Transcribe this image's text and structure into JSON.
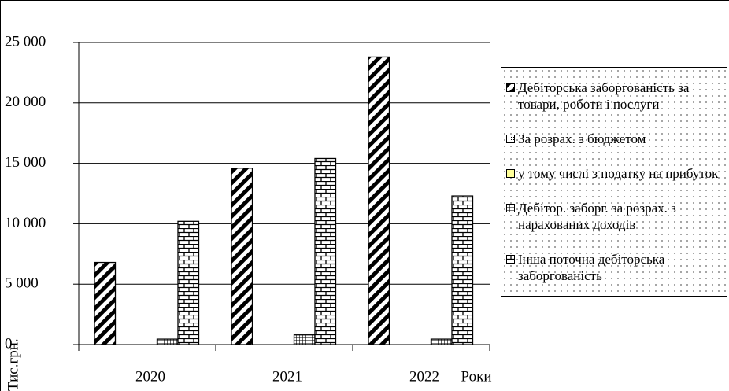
{
  "chart_data": {
    "type": "bar",
    "categories": [
      "2020",
      "2021",
      "2022"
    ],
    "series": [
      {
        "name": "Дебіторська заборгованість за товари, роботи і послуги",
        "color": "#000000",
        "pattern": "diagonal",
        "values": [
          6800,
          14600,
          23800
        ]
      },
      {
        "name": "За розрах. з бюджетом",
        "color": "#000000",
        "pattern": "dots",
        "values": [
          0,
          0,
          0
        ]
      },
      {
        "name": "у тому числі з податку на прибуток",
        "color": "#ffff99",
        "pattern": "solid",
        "values": [
          0,
          0,
          0
        ]
      },
      {
        "name": "Дебітор. заборг. за розрах. з нарахованих доходів",
        "color": "#000000",
        "pattern": "grid",
        "values": [
          450,
          800,
          450
        ]
      },
      {
        "name": "Інша поточна дебіторська заборгованість",
        "color": "#000000",
        "pattern": "brick",
        "values": [
          10200,
          15400,
          12300
        ]
      }
    ],
    "ylim": [
      0,
      25000
    ],
    "yticks": [
      0,
      {
        "value": 5000,
        "label": "5 000"
      },
      {
        "value": 10000,
        "label": "10 000"
      },
      {
        "value": 15000,
        "label": "15 000"
      },
      {
        "value": 20000,
        "label": "20 000"
      },
      {
        "value": 25000,
        "label": "25 000"
      }
    ],
    "grid": true,
    "y_label": "Тис.грн.",
    "x_label": "Роки",
    "legend": "right"
  }
}
